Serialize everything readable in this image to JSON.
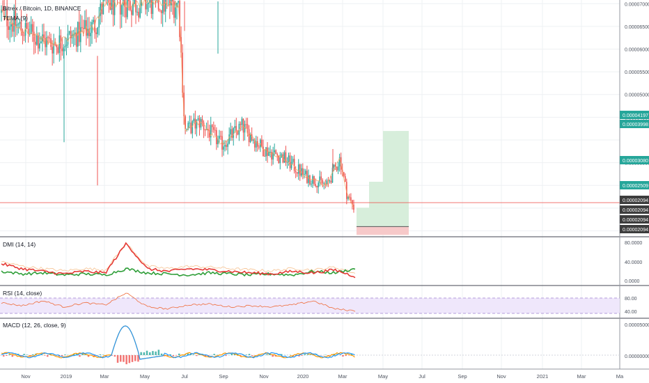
{
  "header": {
    "symbol_title": "Bitrex / Bitcoin, 1D, BINANCE",
    "overlay_label": "TEMA (9)"
  },
  "price_axis": {
    "ticks": [
      "0.00007000",
      "0.00006500",
      "0.00006000",
      "0.00005500",
      "0.00005000",
      "0.00004500",
      "0.00003500"
    ],
    "badges": [
      {
        "label": "0.00004197",
        "color": "#26a69a"
      },
      {
        "label": "0.00003998",
        "color": "#26a69a"
      },
      {
        "label": "0.00003080",
        "color": "#26a69a"
      },
      {
        "label": "0.00002509",
        "color": "#26a69a"
      },
      {
        "label": "0.00002094",
        "color": "#3d3d3d"
      },
      {
        "label": "0.00002094",
        "color": "#3d3d3d"
      },
      {
        "label": "0.00002094",
        "color": "#3d3d3d"
      },
      {
        "label": "0.00002094",
        "color": "#3d3d3d"
      }
    ]
  },
  "panes": {
    "dmi": {
      "label": "DMI (14, 14)",
      "ticks": [
        "80.0000",
        "40.0000",
        "0.0000"
      ]
    },
    "rsi": {
      "label": "RSI (14, close)",
      "ticks": [
        "80.00",
        "40.00"
      ]
    },
    "macd": {
      "label": "MACD (12, 26, close, 9)",
      "ticks": [
        "0.00005000",
        "0.00000000"
      ]
    }
  },
  "time_axis": [
    "Nov",
    "2019",
    "Mar",
    "May",
    "Jul",
    "Sep",
    "Nov",
    "2020",
    "Mar",
    "May",
    "Jul",
    "Sep",
    "Nov",
    "2021",
    "Mar",
    "Ma"
  ],
  "colors": {
    "up": "#26a69a",
    "down": "#ef5350",
    "grid": "#eef0f3",
    "price_line": "#ef5350",
    "target_fill": "#d7eedb",
    "stop_fill": "#f7c9c9",
    "rsi_band": "#efe7fb",
    "dmi_plus": "#2e9e38",
    "dmi_minus": "#e53935",
    "adx": "#f7c79a",
    "macd_line": "#2196f3",
    "signal_line": "#ff9800"
  },
  "chart_data": [
    {
      "type": "line",
      "title": "Bitrex / Bitcoin, 1D, BINANCE",
      "series": [
        {
          "name": "TEMA (9)",
          "x": [
            "2018-10-15",
            "2018-11-01",
            "2018-12-01",
            "2019-01-01",
            "2019-02-01",
            "2019-03-01",
            "2019-03-15",
            "2019-07-01",
            "2019-07-10",
            "2019-08-01",
            "2019-09-01",
            "2019-10-01",
            "2019-11-01",
            "2019-12-01",
            "2020-01-01",
            "2020-02-01",
            "2020-02-20",
            "2020-03-01",
            "2020-03-12",
            "2020-03-15"
          ],
          "values": [
            6.8e-05,
            6.6e-05,
            6.3e-05,
            6.1e-05,
            6.3e-05,
            6.5e-05,
            7e-05,
            7e-05,
            4.2e-05,
            4.4e-05,
            3.9e-05,
            4.3e-05,
            3.8e-05,
            3.6e-05,
            3.2e-05,
            3e-05,
            3.6e-05,
            2.8e-05,
            2.5e-05,
            2.1e-05
          ]
        }
      ],
      "annotations": [
        {
          "type": "long-position",
          "entry": 2.094e-05,
          "targets": [
            2.509e-05,
            3.08e-05,
            3.998e-05,
            4.197e-05
          ]
        }
      ],
      "ylim": [
        1.9e-05,
        7.05e-05
      ]
    },
    {
      "type": "line",
      "title": "DMI (14, 14)",
      "ylim": [
        0,
        90
      ],
      "series": [
        {
          "name": "+DI",
          "values": [
            25,
            20,
            22,
            18,
            20,
            18,
            30,
            22,
            20,
            18,
            22,
            20,
            18,
            20,
            18,
            25,
            22,
            30
          ]
        },
        {
          "name": "-DI",
          "values": [
            40,
            30,
            25,
            20,
            25,
            22,
            80,
            30,
            25,
            30,
            28,
            25,
            22,
            20,
            25,
            22,
            28,
            15
          ]
        }
      ]
    },
    {
      "type": "line",
      "title": "RSI (14, close)",
      "ylim": [
        20,
        95
      ],
      "series": [
        {
          "name": "RSI",
          "values": [
            55,
            48,
            60,
            45,
            55,
            50,
            80,
            45,
            40,
            50,
            52,
            45,
            48,
            45,
            50,
            60,
            40,
            35
          ]
        }
      ]
    },
    {
      "type": "line",
      "title": "MACD (12, 26, close, 9)",
      "ylim": [
        -5e-06,
        5.4e-05
      ],
      "series": [
        {
          "name": "MACD",
          "values": [
            0,
            1e-06,
            2e-06,
            5e-06,
            4e-06,
            8e-06,
            4.5e-05,
            5e-06,
            -3e-06,
            2e-06,
            1e-06,
            0,
            1e-06,
            0,
            1e-06,
            2e-06,
            -1e-06,
            -1e-06
          ]
        }
      ]
    }
  ]
}
